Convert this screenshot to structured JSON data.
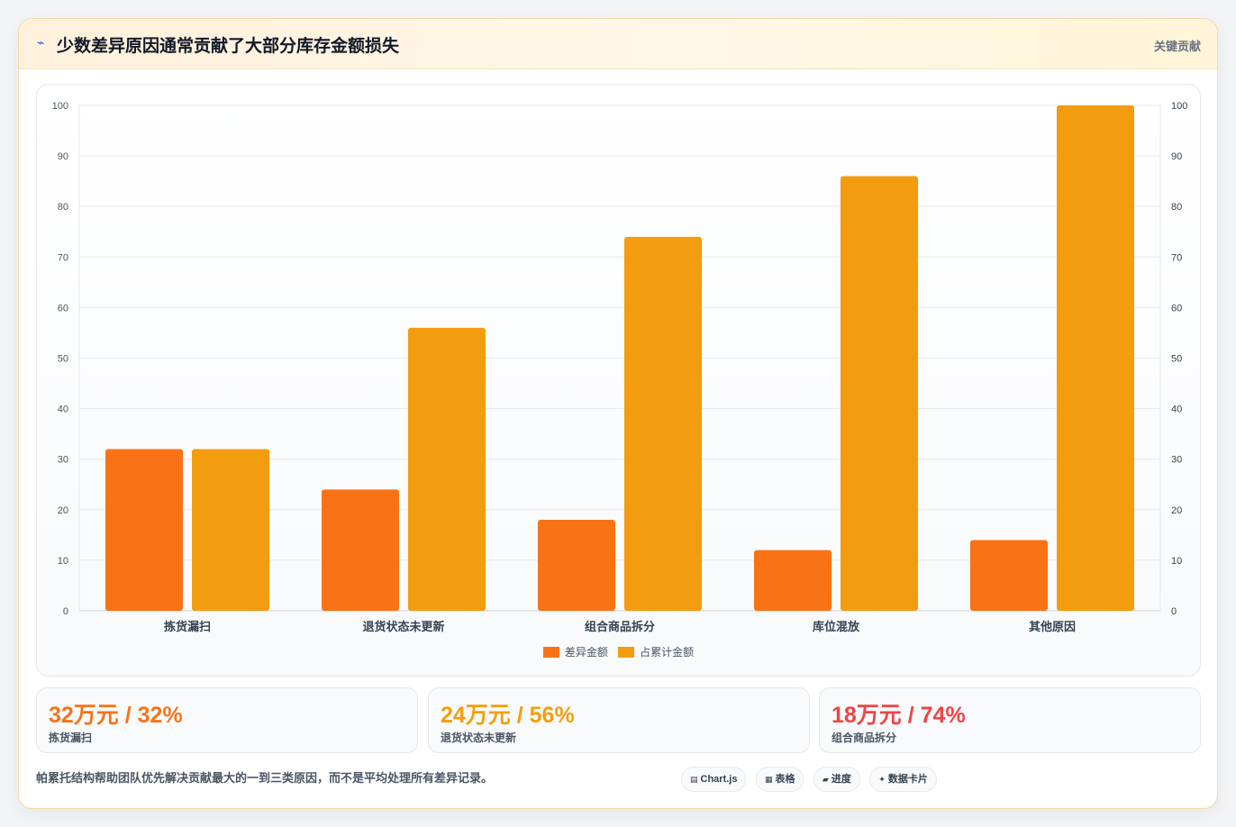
{
  "header": {
    "icon": "lightning-icon",
    "title": "少数差异原因通常贡献了大部分库存金额损失",
    "tag": "关键贡献"
  },
  "chart_data": {
    "type": "bar",
    "categories": [
      "拣货漏扫",
      "退货状态未更新",
      "组合商品拆分",
      "库位混放",
      "其他原因"
    ],
    "series": [
      {
        "name": "差异金额",
        "values": [
          32,
          24,
          18,
          12,
          14
        ],
        "color": "#f97316"
      },
      {
        "name": "占累计金额",
        "values": [
          32,
          56,
          74,
          86,
          100
        ],
        "color": "#f39c0f"
      }
    ],
    "ylim": [
      0,
      100
    ],
    "y_ticks": [
      0,
      10,
      20,
      30,
      40,
      50,
      60,
      70,
      80,
      90,
      100
    ],
    "y2_ticks": [
      0,
      10,
      20,
      30,
      40,
      50,
      60,
      70,
      80,
      90,
      100
    ],
    "grid": true,
    "legend": "bottom"
  },
  "stats": [
    {
      "value": "32万元 / 32%",
      "label": "拣货漏扫",
      "color": "#f97316"
    },
    {
      "value": "24万元 / 56%",
      "label": "退货状态未更新",
      "color": "#f59e0b"
    },
    {
      "value": "18万元 / 74%",
      "label": "组合商品拆分",
      "color": "#ef4444"
    }
  ],
  "footnote": "帕累托结构帮助团队优先解决贡献最大的一到三类原因，而不是平均处理所有差异记录。",
  "chips": [
    {
      "icon": "chart-icon",
      "glyph": "▤",
      "label": "Chart.js"
    },
    {
      "icon": "table-icon",
      "glyph": "▦",
      "label": "表格"
    },
    {
      "icon": "progress-icon",
      "glyph": "▰",
      "label": "进度"
    },
    {
      "icon": "sparkle-icon",
      "glyph": "✦",
      "label": "数据卡片"
    }
  ]
}
